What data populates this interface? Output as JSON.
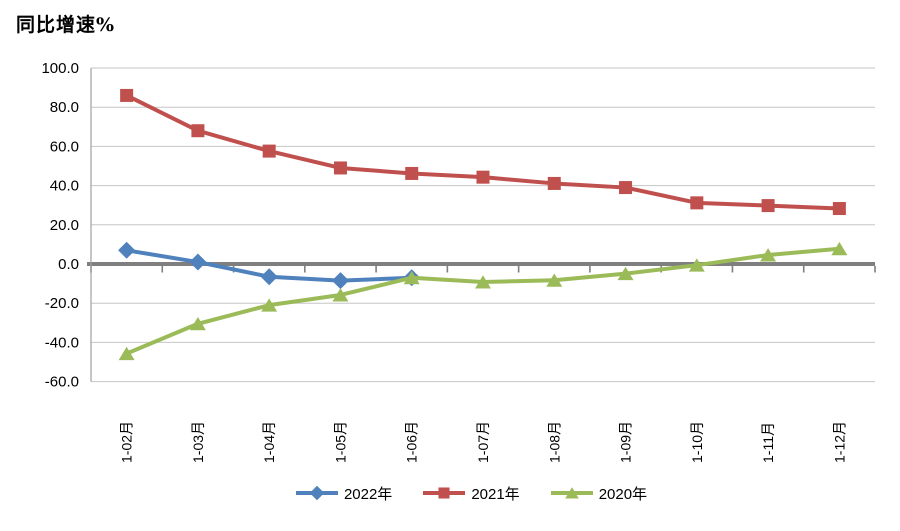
{
  "chart_data": {
    "type": "line",
    "title": "同比增速%",
    "categories": [
      "1-02月",
      "1-03月",
      "1-04月",
      "1-05月",
      "1-06月",
      "1-07月",
      "1-08月",
      "1-09月",
      "1-10月",
      "1-11月",
      "1-12月"
    ],
    "series": [
      {
        "name": "2022年",
        "color": "#4F81BD",
        "marker": "diamond",
        "values": [
          7.0,
          1.0,
          -6.5,
          -8.5,
          -7.0
        ]
      },
      {
        "name": "2021年",
        "color": "#C0504D",
        "marker": "square",
        "values": [
          86.0,
          68.0,
          57.6,
          49.0,
          46.2,
          44.3,
          41.1,
          39.0,
          31.2,
          29.8,
          28.3
        ]
      },
      {
        "name": "2020年",
        "color": "#9BBB59",
        "marker": "triangle",
        "values": [
          -45.7,
          -30.5,
          -21.0,
          -15.8,
          -7.0,
          -9.2,
          -8.3,
          -4.9,
          -0.6,
          4.6,
          7.8
        ]
      }
    ],
    "ylim": [
      -60,
      100
    ],
    "ytick_step": 20,
    "yticks": [
      "100.0",
      "80.0",
      "60.0",
      "40.0",
      "20.0",
      "0.0",
      "-20.0",
      "-40.0",
      "-60.0"
    ],
    "grid": true,
    "legend_position": "bottom",
    "colors": {
      "gridline": "#C6C6C6",
      "zero_axis": "#7F7F7F",
      "axis_line": "#A0A0A0",
      "tick": "#7F7F7F",
      "text": "#000000",
      "background": "#FFFFFF"
    }
  }
}
